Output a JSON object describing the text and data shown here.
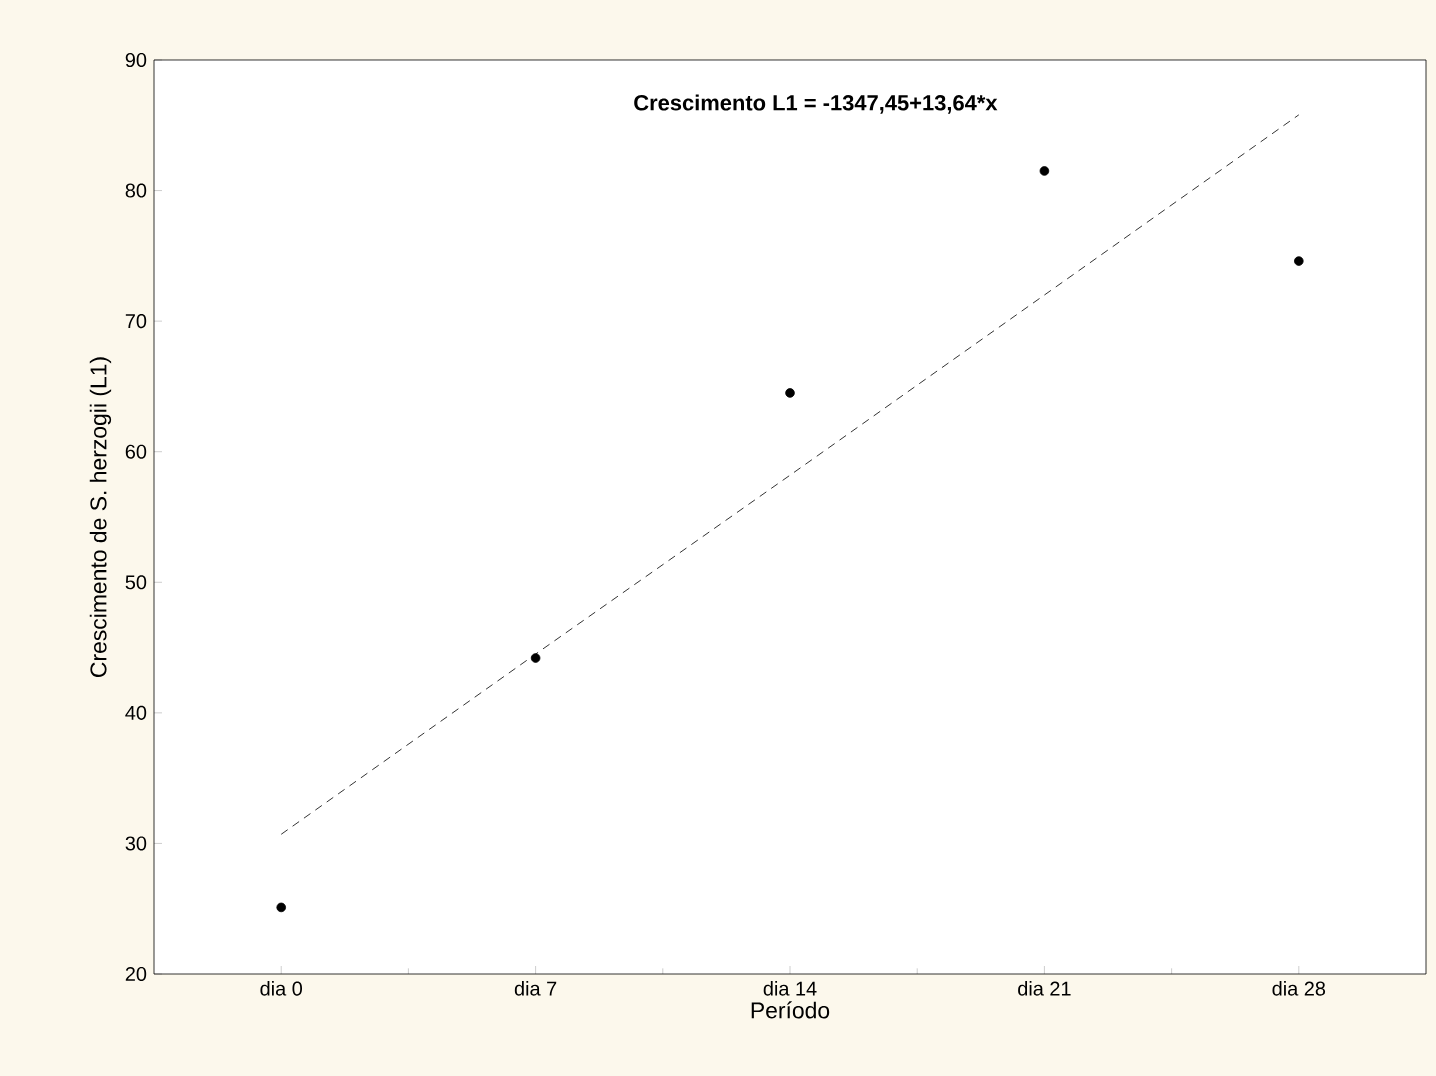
{
  "chart_data": {
    "type": "scatter",
    "xlabel": "Período",
    "ylabel": "Crescimento de S. herzogii (L1)",
    "annotations": [
      "**Crescimento L1 = -1347,45+13,64*x**"
    ],
    "categories": [
      "dia 0",
      "dia 7",
      "dia 14",
      "dia 21",
      "dia 28"
    ],
    "ylim": [
      20,
      90
    ],
    "yticks": [
      20,
      30,
      40,
      50,
      60,
      70,
      80,
      90
    ],
    "series": [
      {
        "color": "#000000",
        "marker": "circle",
        "values": [
          25.1,
          44.2,
          64.5,
          81.5,
          74.6
        ]
      },
      {
        "type": "line",
        "color": "#000000",
        "marker": "none",
        "line_style": "dashed",
        "values": [
          30.7,
          44.5,
          58.2,
          72.0,
          85.8
        ]
      }
    ]
  }
}
